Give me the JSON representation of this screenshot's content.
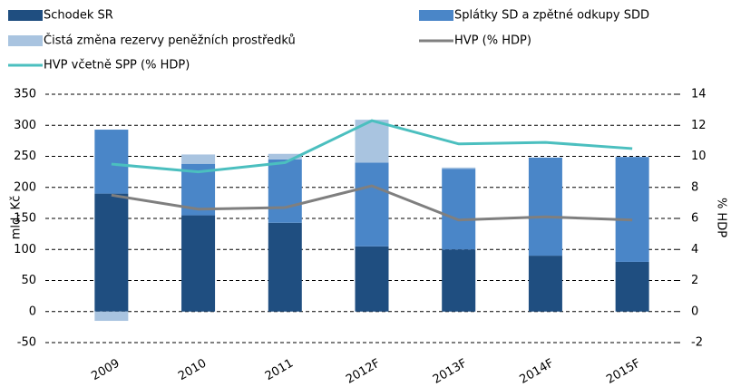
{
  "chart_data": {
    "type": "bar",
    "categories": [
      "2009",
      "2010",
      "2011",
      "2012F",
      "2013F",
      "2014F",
      "2015F"
    ],
    "series": [
      {
        "name": "Schodek SR",
        "type": "bar",
        "color": "#1f4e80",
        "values": [
          190,
          155,
          143,
          105,
          100,
          90,
          80
        ]
      },
      {
        "name": "Splátky SD a zpětné odkupy SDD",
        "type": "bar",
        "color": "#4a86c8",
        "values": [
          103,
          83,
          102,
          135,
          130,
          158,
          169
        ]
      },
      {
        "name": "Čistá změna rezervy peněžních prostředků",
        "type": "bar",
        "color": "#a9c4e0",
        "values": [
          -15,
          15,
          9,
          69,
          2,
          0,
          0
        ]
      },
      {
        "name": "HVP (% HDP)",
        "type": "line",
        "axis": "y2",
        "color": "#7f7f7f",
        "values": [
          7.5,
          6.6,
          6.7,
          8.1,
          5.9,
          6.1,
          5.9
        ]
      },
      {
        "name": "HVP včetně SPP (% HDP)",
        "type": "line",
        "axis": "y2",
        "color": "#4bbfbf",
        "values": [
          9.5,
          9.0,
          9.6,
          12.3,
          10.8,
          10.9,
          10.5
        ]
      }
    ],
    "ylabel": "mld. Kč",
    "y2label": "% HDP",
    "ylim": [
      -50,
      350
    ],
    "yticks": [
      -50,
      0,
      50,
      100,
      150,
      200,
      250,
      300,
      350
    ],
    "y2lim": [
      -2,
      14
    ],
    "y2ticks": [
      -2,
      0,
      2,
      4,
      6,
      8,
      10,
      12,
      14
    ],
    "grid": true
  }
}
